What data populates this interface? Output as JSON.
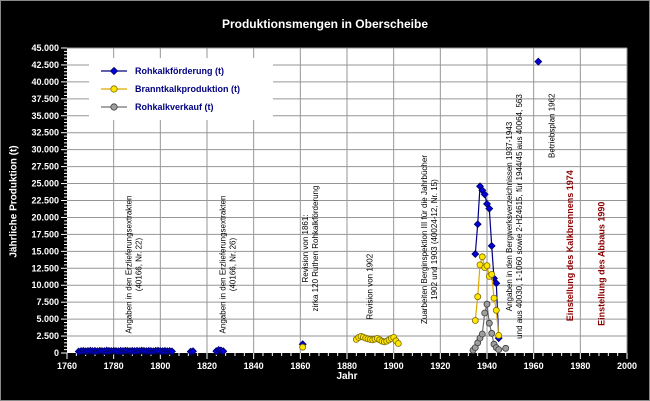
{
  "chart_data": {
    "type": "scatter",
    "title": "Produktionsmengen in Oberscheibe",
    "xlabel": "Jahr",
    "ylabel": "Jährliche Produktion (t)",
    "xlim": [
      1760,
      2000
    ],
    "ylim": [
      0,
      45000
    ],
    "x_tick_step": 20,
    "x_minor_step": 4,
    "y_tick_step": 2500,
    "y_minor_step": 500,
    "grid": true,
    "grid_color": "#969696",
    "background": "#000000",
    "plot_background": "#ffffff",
    "axis_text_color": "#ffffff",
    "legend_position": "top-left",
    "legend_text_color": "#000080",
    "series": [
      {
        "name": "Rohkalkförderung (t)",
        "marker": "diamond",
        "color": "#0000d8",
        "edge_color": "#000060",
        "line_color": "#000080",
        "points": [
          [
            1765,
            220
          ],
          [
            1766,
            280
          ],
          [
            1767,
            320
          ],
          [
            1768,
            260
          ],
          [
            1769,
            300
          ],
          [
            1770,
            340
          ],
          [
            1771,
            290
          ],
          [
            1772,
            310
          ],
          [
            1773,
            270
          ],
          [
            1774,
            330
          ],
          [
            1775,
            300
          ],
          [
            1776,
            280
          ],
          [
            1777,
            350
          ],
          [
            1778,
            310
          ],
          [
            1779,
            290
          ],
          [
            1780,
            330
          ],
          [
            1781,
            300
          ],
          [
            1782,
            270
          ],
          [
            1783,
            320
          ],
          [
            1784,
            290
          ],
          [
            1785,
            340
          ],
          [
            1786,
            310
          ],
          [
            1787,
            280
          ],
          [
            1788,
            330
          ],
          [
            1789,
            300
          ],
          [
            1790,
            320
          ],
          [
            1791,
            290
          ],
          [
            1792,
            350
          ],
          [
            1793,
            310
          ],
          [
            1794,
            280
          ],
          [
            1795,
            330
          ],
          [
            1796,
            300
          ],
          [
            1797,
            270
          ],
          [
            1798,
            320
          ],
          [
            1799,
            340
          ],
          [
            1800,
            300
          ],
          [
            1801,
            280
          ],
          [
            1802,
            310
          ],
          [
            1803,
            260
          ],
          [
            1804,
            290
          ],
          [
            1805,
            240
          ],
          [
            1813,
            200
          ],
          [
            1814,
            260
          ],
          [
            1824,
            280
          ],
          [
            1825,
            450
          ],
          [
            1826,
            380
          ],
          [
            1827,
            260
          ],
          [
            1861,
            1300
          ],
          [
            1935,
            14600
          ],
          [
            1936,
            19000
          ],
          [
            1937,
            24600
          ],
          [
            1938,
            24000
          ],
          [
            1939,
            23400
          ],
          [
            1940,
            22000
          ],
          [
            1941,
            21300
          ],
          [
            1942,
            15800
          ],
          [
            1943,
            11000
          ],
          [
            1944,
            10300
          ],
          [
            1945,
            2200
          ],
          [
            1962,
            43000
          ]
        ]
      },
      {
        "name": "Branntkalkproduktion (t)",
        "marker": "circle",
        "color": "#ffe600",
        "edge_color": "#7a6a00",
        "line_color": "#dfa800",
        "points": [
          [
            1861,
            850
          ],
          [
            1884,
            2000
          ],
          [
            1885,
            2300
          ],
          [
            1886,
            2450
          ],
          [
            1887,
            2350
          ],
          [
            1888,
            2200
          ],
          [
            1889,
            2100
          ],
          [
            1890,
            2000
          ],
          [
            1891,
            1950
          ],
          [
            1892,
            2050
          ],
          [
            1893,
            2150
          ],
          [
            1894,
            1950
          ],
          [
            1895,
            1750
          ],
          [
            1896,
            1650
          ],
          [
            1897,
            1750
          ],
          [
            1898,
            1950
          ],
          [
            1899,
            2150
          ],
          [
            1900,
            2300
          ],
          [
            1901,
            1800
          ],
          [
            1902,
            1400
          ],
          [
            1935,
            4800
          ],
          [
            1936,
            8300
          ],
          [
            1937,
            13000
          ],
          [
            1938,
            14200
          ],
          [
            1939,
            12600
          ],
          [
            1940,
            12900
          ],
          [
            1941,
            11300
          ],
          [
            1942,
            11600
          ],
          [
            1943,
            8100
          ],
          [
            1944,
            6300
          ],
          [
            1945,
            2600
          ]
        ]
      },
      {
        "name": "Rohkalkverkauf (t)",
        "marker": "circle",
        "color": "#9e9e9e",
        "edge_color": "#3c3c3c",
        "line_color": "#707070",
        "points": [
          [
            1934,
            400
          ],
          [
            1935,
            800
          ],
          [
            1936,
            1500
          ],
          [
            1937,
            2200
          ],
          [
            1938,
            2800
          ],
          [
            1939,
            5900
          ],
          [
            1940,
            7200
          ],
          [
            1941,
            4400
          ],
          [
            1942,
            2900
          ],
          [
            1943,
            1300
          ],
          [
            1944,
            800
          ],
          [
            1945,
            500
          ],
          [
            1948,
            700
          ]
        ]
      }
    ]
  },
  "annotations": [
    {
      "lines": [
        "Angaben in den Erzlieferungsextrakten",
        "(40166, Nr. 22)"
      ],
      "color": "#000000",
      "bold": false
    },
    {
      "lines": [
        "Angaben in den Erzlieferungsextrakten",
        "(40166, Nr. 26)"
      ],
      "color": "#000000",
      "bold": false
    },
    {
      "lines": [
        "Revision von 1861:",
        "zirka 120 Ruthen Rohkalkförderung"
      ],
      "color": "#000000",
      "bold": false
    },
    {
      "lines": [
        "Revision von 1902"
      ],
      "color": "#000000",
      "bold": false
    },
    {
      "lines": [
        "Zuarbeiten Berginspektion III für die Jahrbücher",
        "1902 und 1903 (40024-12, Nr. 15)"
      ],
      "color": "#000000",
      "bold": false
    },
    {
      "lines": [
        "Angaben in den Bergwerksverzeichnissen 1937-1943",
        "und aus 40030, 1-1060 sowie 2-H24615, für 1944/45 aus 40064, 563"
      ],
      "color": "#000000",
      "bold": false
    },
    {
      "lines": [
        "Betriebsplan 1962"
      ],
      "color": "#000000",
      "bold": false
    },
    {
      "lines": [
        "Einstellung des Kalkbrennens  1974"
      ],
      "color": "#8b0000",
      "bold": true
    },
    {
      "lines": [
        "Einstellung des Abbaus  1990"
      ],
      "color": "#8b0000",
      "bold": true
    }
  ]
}
